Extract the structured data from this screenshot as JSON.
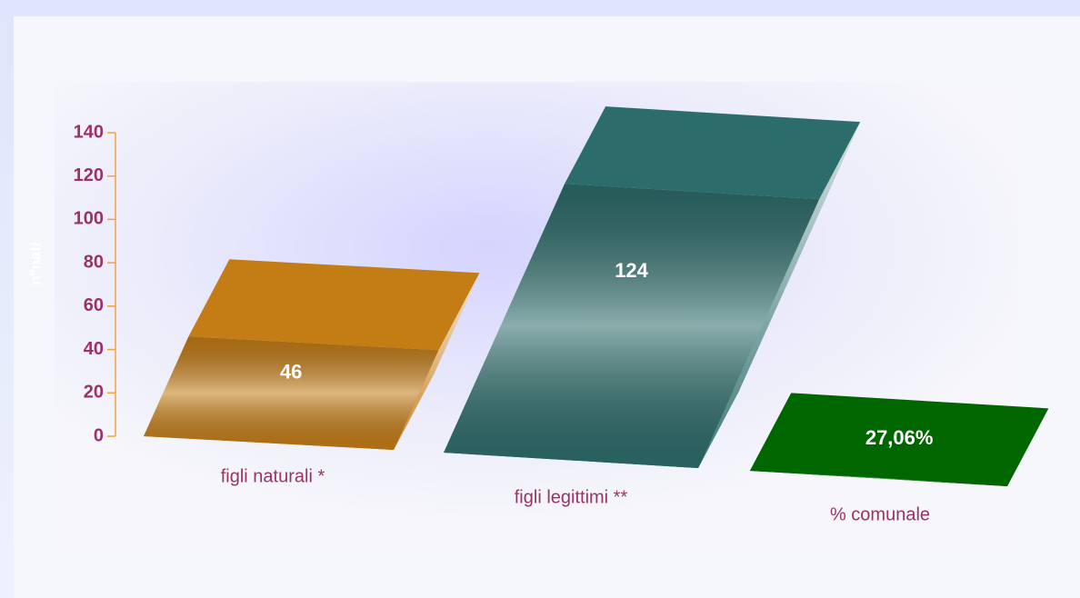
{
  "chart_data": {
    "type": "bar3d",
    "y_label": "n°nati",
    "categories": [
      "figli naturali *",
      "figli legittimi **",
      "% comunale"
    ],
    "values": [
      46,
      124,
      0.2706
    ],
    "value_labels": [
      "46",
      "124",
      "27,06%"
    ],
    "colors": [
      "#c47c14",
      "#2c6c6a",
      "#006600"
    ],
    "ylim": [
      0,
      140
    ],
    "yticks": [
      0,
      20,
      40,
      60,
      80,
      100,
      120,
      140
    ]
  }
}
